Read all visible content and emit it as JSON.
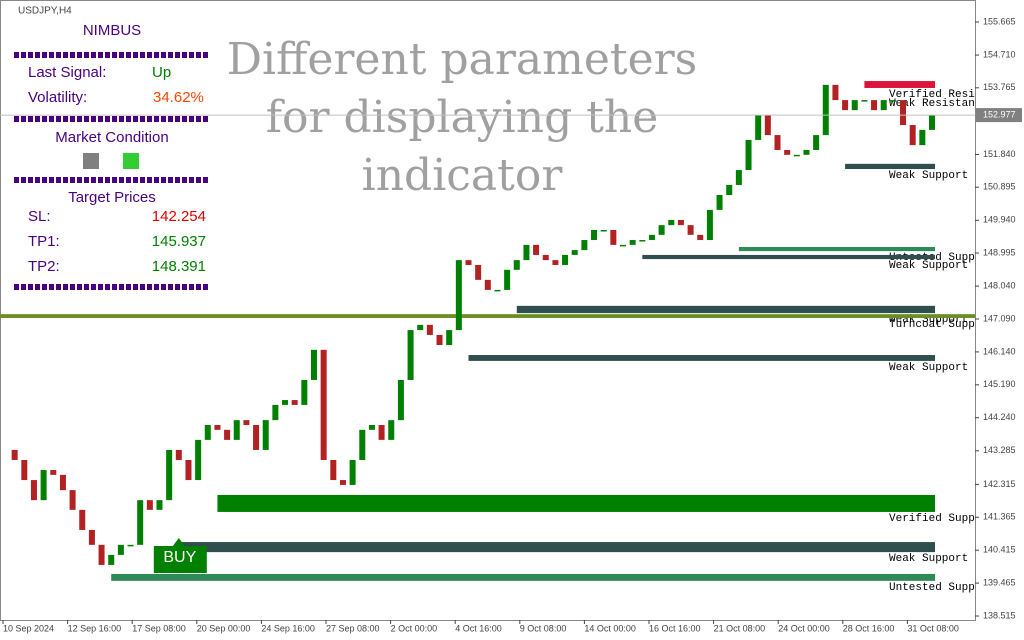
{
  "chart_data": {
    "type": "candlestick",
    "title": "USDJPY,H4",
    "ylim": [
      138.4,
      156.3
    ],
    "yticks": [
      155.665,
      {
        "value": 154.71,
        "label": "154.710"
      },
      153.765,
      {
        "value": 151.84,
        "label": "151.840"
      },
      150.895,
      {
        "value": 149.94,
        "label": "149.940"
      },
      148.995,
      {
        "value": 148.04,
        "label": "148.040"
      },
      {
        "value": 147.09,
        "label": "147.090"
      },
      {
        "value": 146.14,
        "label": "146.140"
      },
      {
        "value": 145.19,
        "label": "145.190"
      },
      {
        "value": 144.24,
        "label": "144.240"
      },
      143.285,
      142.315,
      141.365,
      140.415,
      139.465,
      138.515
    ],
    "categories": [
      "10 Sep 2024",
      "12 Sep 16:00",
      "17 Sep 08:00",
      "20 Sep 00:00",
      "24 Sep 16:00",
      "27 Sep 08:00",
      "2 Oct 00:00",
      "4 Oct 16:00",
      "9 Oct 08:00",
      "14 Oct 00:00",
      "16 Oct 16:00",
      "21 Oct 08:00",
      "24 Oct 00:00",
      "28 Oct 16:00",
      "31 Oct 08:00"
    ],
    "closes": [
      143.31,
      143.02,
      142.44,
      141.86,
      142.73,
      142.59,
      142.15,
      141.58,
      141.0,
      140.57,
      139.99,
      140.28,
      140.57,
      140.57,
      141.86,
      141.58,
      141.86,
      143.31,
      143.02,
      142.44,
      143.6,
      144.03,
      143.89,
      143.6,
      144.17,
      144.03,
      143.31,
      144.17,
      144.61,
      144.75,
      144.61,
      145.33,
      146.2,
      143.02,
      142.44,
      142.3,
      143.02,
      143.89,
      144.03,
      143.6,
      144.17,
      145.33,
      146.77,
      146.92,
      146.63,
      146.34,
      146.77,
      148.79,
      148.65,
      148.22,
      147.93,
      147.93,
      148.51,
      148.79,
      149.23,
      148.94,
      148.79,
      148.65,
      148.94,
      149.08,
      149.37,
      149.66,
      149.66,
      149.23,
      149.23,
      149.37,
      149.37,
      149.52,
      149.8,
      149.95,
      149.8,
      149.52,
      149.37,
      150.24,
      150.67,
      150.96,
      151.39,
      152.26,
      152.98,
      152.4,
      151.97,
      151.83,
      151.83,
      151.97,
      152.4,
      153.85,
      153.41,
      153.12,
      153.41,
      153.41,
      153.12,
      153.41,
      153.41,
      152.69,
      152.11,
      152.55,
      152.98
    ],
    "up_color": "#008000",
    "down_color": "#b22222",
    "last_price": 152.977,
    "zones": [
      {
        "label": "Verified Resi",
        "top": 153.96,
        "bottom": 153.76,
        "start": 89,
        "color": "#dc143c"
      },
      {
        "label": "Weak Resistan",
        "top": 153.7,
        "bottom": 153.5,
        "start": 97,
        "color": "#2e1a6e"
      },
      {
        "label": "Weak Support",
        "top": 151.57,
        "bottom": 151.42,
        "start": 87,
        "color": "#2f4f4f"
      },
      {
        "label": "Untested Supp",
        "top": 149.17,
        "bottom": 149.05,
        "start": 76,
        "color": "#2e8b57"
      },
      {
        "label": "Weak Support",
        "top": 148.94,
        "bottom": 148.82,
        "start": 66,
        "color": "#2f4f4f"
      },
      {
        "label": "Weak Support",
        "top": 147.47,
        "bottom": 147.26,
        "start": 53,
        "color": "#2f4f4f"
      },
      {
        "label": "Turncoat Supp",
        "top": 147.23,
        "bottom": 147.12,
        "start": 0,
        "color": "#6b8e23",
        "extend_right": true
      },
      {
        "label": "Weak Support",
        "top": 146.05,
        "bottom": 145.88,
        "start": 48,
        "color": "#2f4f4f"
      },
      {
        "label": "Verified Supp",
        "top": 142.01,
        "bottom": 141.52,
        "start": 22,
        "color": "#008000"
      },
      {
        "label": "Weak Support",
        "top": 140.65,
        "bottom": 140.36,
        "start": 18,
        "color": "#2f4f4f"
      },
      {
        "label": "Untested Supp",
        "top": 139.73,
        "bottom": 139.53,
        "start": 11,
        "color": "#2e8b57"
      }
    ],
    "buy_signal": {
      "label": "BUY",
      "index": 18
    }
  },
  "panel": {
    "title": "NIMBUS",
    "last_signal_label": "Last Signal:",
    "last_signal": "Up",
    "volatility_label": "Volatility:",
    "volatility": "34.62%",
    "market_condition": "Market Condition",
    "target_prices": "Target Prices",
    "sl_label": "SL:",
    "sl": "142.254",
    "tp1_label": "TP1:",
    "tp1": "145.937",
    "tp2_label": "TP2:",
    "tp2": "148.391"
  },
  "watermark": [
    "Different parameters",
    "for displaying the",
    "indicator"
  ]
}
